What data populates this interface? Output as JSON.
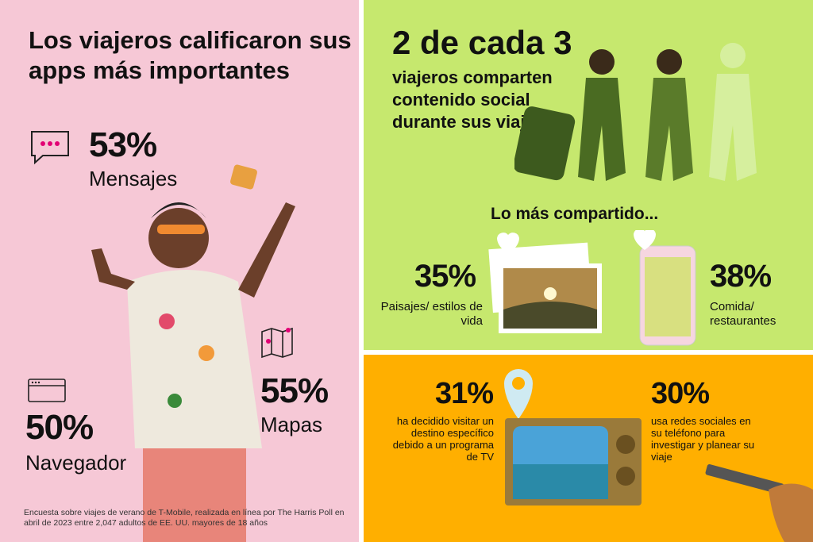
{
  "left": {
    "title": "Los viajeros calificaron sus apps más importantes",
    "stats": [
      {
        "value": "53%",
        "label": "Mensajes",
        "icon": "message-bubble-icon"
      },
      {
        "value": "55%",
        "label": "Mapas",
        "icon": "map-icon"
      },
      {
        "value": "50%",
        "label": "Navegador",
        "icon": "browser-window-icon"
      }
    ],
    "footnote": "Encuesta sobre viajes de verano de T-Mobile, realizada en línea por The Harris Poll en abril de 2023 entre 2,047 adultos de EE. UU. mayores de 18 años"
  },
  "green": {
    "headline": "2 de cada 3",
    "subhead": "viajeros comparten contenido social durante sus viajes",
    "section": "Lo más compartido...",
    "stats": [
      {
        "value": "35%",
        "label": "Paisajes/ estilos de vida"
      },
      {
        "value": "38%",
        "label": "Comida/ restaurantes"
      }
    ]
  },
  "orange": {
    "stats": [
      {
        "value": "31%",
        "label": "ha decidido visitar un destino específico debido a un programa de TV"
      },
      {
        "value": "30%",
        "label": "usa redes sociales en su teléfono para investigar y planear su viaje"
      }
    ]
  },
  "colors": {
    "pink": "#f6c8d6",
    "green": "#c6e86e",
    "orange": "#ffaf00",
    "magenta": "#e20074"
  }
}
